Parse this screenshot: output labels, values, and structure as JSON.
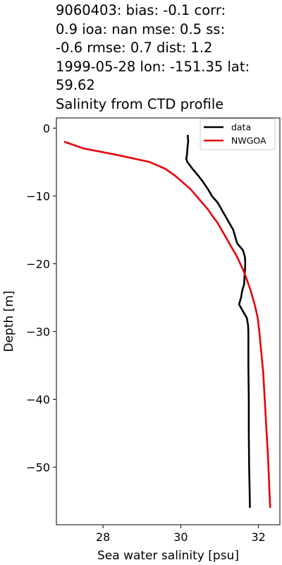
{
  "title_lines": [
    "9060403: bias: -0.1  corr:",
    "0.9  ioa: nan  mse: 0.5  ss:",
    "-0.6  rmse: 0.7  dist: 1.2",
    "1999-05-28 lon: -151.35 lat:",
    "59.62",
    "Salinity from CTD profile"
  ],
  "chart_data": {
    "type": "line",
    "title": "9060403: bias: -0.1  corr: 0.9  ioa: nan  mse: 0.5  ss: -0.6  rmse: 0.7  dist: 1.2 1999-05-28 lon: -151.35 lat: 59.62 Salinity from CTD profile",
    "xlabel": "Sea water salinity [psu]",
    "ylabel": "Depth [m]",
    "xlim": [
      26.8,
      32.55
    ],
    "ylim": [
      -58.5,
      1.5
    ],
    "xticks": [
      28,
      30,
      32
    ],
    "xtick_labels": [
      "28",
      "30",
      "32"
    ],
    "yticks": [
      0,
      -10,
      -20,
      -30,
      -40,
      -50
    ],
    "ytick_labels": [
      "0",
      "−10",
      "−20",
      "−30",
      "−40",
      "−50"
    ],
    "legend_position": "upper right",
    "series": [
      {
        "name": "data",
        "color": "#000000",
        "points": [
          [
            30.18,
            -1
          ],
          [
            30.19,
            -2
          ],
          [
            30.17,
            -3
          ],
          [
            30.16,
            -4
          ],
          [
            30.14,
            -4.5
          ],
          [
            30.17,
            -5
          ],
          [
            30.3,
            -6
          ],
          [
            30.45,
            -7
          ],
          [
            30.58,
            -8
          ],
          [
            30.7,
            -9
          ],
          [
            30.8,
            -10
          ],
          [
            30.95,
            -11
          ],
          [
            31.05,
            -12
          ],
          [
            31.15,
            -13
          ],
          [
            31.25,
            -14
          ],
          [
            31.35,
            -15
          ],
          [
            31.4,
            -16
          ],
          [
            31.45,
            -17
          ],
          [
            31.6,
            -18
          ],
          [
            31.65,
            -19
          ],
          [
            31.66,
            -20
          ],
          [
            31.65,
            -21
          ],
          [
            31.64,
            -22
          ],
          [
            31.63,
            -23
          ],
          [
            31.58,
            -24
          ],
          [
            31.55,
            -25
          ],
          [
            31.5,
            -26
          ],
          [
            31.6,
            -27
          ],
          [
            31.7,
            -28
          ],
          [
            31.73,
            -29
          ],
          [
            31.74,
            -30
          ],
          [
            31.74,
            -35
          ],
          [
            31.75,
            -40
          ],
          [
            31.75,
            -45
          ],
          [
            31.76,
            -50
          ],
          [
            31.77,
            -53
          ],
          [
            31.78,
            -56
          ]
        ]
      },
      {
        "name": "NWGOA",
        "color": "#e8000b",
        "points": [
          [
            27.0,
            -2
          ],
          [
            27.5,
            -3
          ],
          [
            28.4,
            -4
          ],
          [
            29.2,
            -5
          ],
          [
            29.6,
            -6
          ],
          [
            29.85,
            -7
          ],
          [
            30.05,
            -8
          ],
          [
            30.25,
            -9
          ],
          [
            30.4,
            -10
          ],
          [
            30.55,
            -11
          ],
          [
            30.7,
            -12
          ],
          [
            30.82,
            -13
          ],
          [
            30.95,
            -14
          ],
          [
            31.05,
            -15
          ],
          [
            31.15,
            -16
          ],
          [
            31.25,
            -17
          ],
          [
            31.35,
            -18
          ],
          [
            31.45,
            -19
          ],
          [
            31.53,
            -20
          ],
          [
            31.61,
            -21
          ],
          [
            31.68,
            -22
          ],
          [
            31.74,
            -23
          ],
          [
            31.8,
            -24
          ],
          [
            31.85,
            -25
          ],
          [
            31.9,
            -26
          ],
          [
            31.94,
            -27
          ],
          [
            31.98,
            -28
          ],
          [
            32.02,
            -30
          ],
          [
            32.07,
            -33
          ],
          [
            32.12,
            -36
          ],
          [
            32.16,
            -40
          ],
          [
            32.2,
            -44
          ],
          [
            32.24,
            -48
          ],
          [
            32.27,
            -52
          ],
          [
            32.3,
            -56
          ]
        ]
      }
    ]
  }
}
